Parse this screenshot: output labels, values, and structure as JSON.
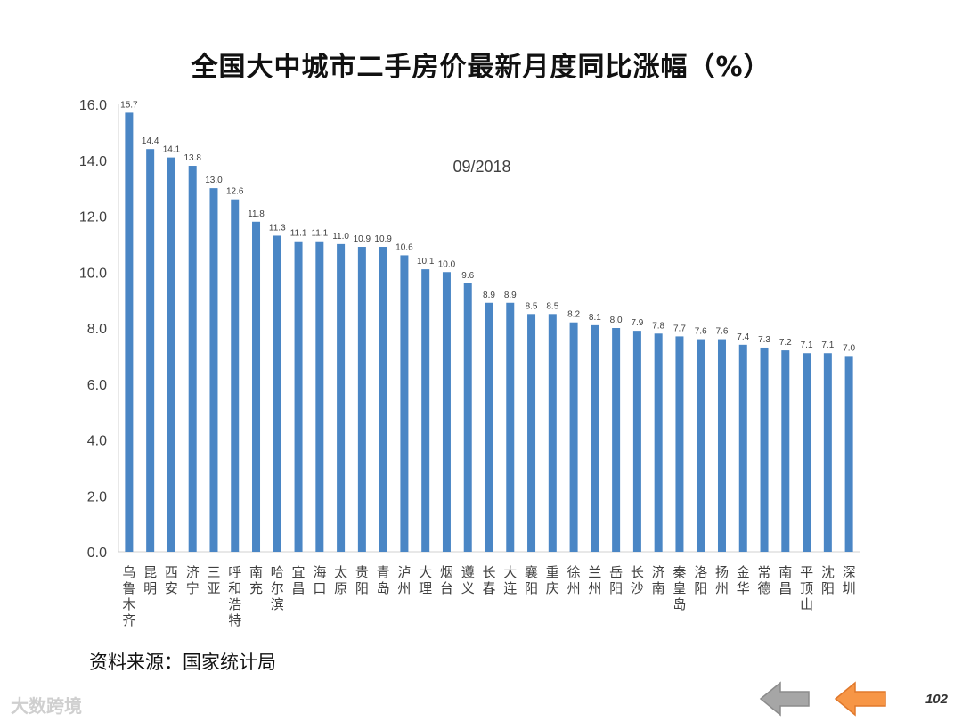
{
  "colors": {
    "bar": "#4a86c5",
    "axis": "#d0d0d0",
    "text": "#404040",
    "nav_back": "#a6a6a6",
    "nav_forward": "#f79646"
  },
  "chart_data": {
    "type": "bar",
    "title": "全国大中城市二手房价最新月度同比涨幅（%）",
    "annotation": "09/2018",
    "ylim": [
      0,
      16
    ],
    "yticks": [
      "0.0",
      "2.0",
      "4.0",
      "6.0",
      "8.0",
      "10.0",
      "12.0",
      "14.0",
      "16.0"
    ],
    "grid": false,
    "categories": [
      "乌鲁木齐",
      "昆明",
      "西安",
      "济宁",
      "三亚",
      "呼和浩特",
      "南充",
      "哈尔滨",
      "宜昌",
      "海口",
      "太原",
      "贵阳",
      "青岛",
      "泸州",
      "大理",
      "烟台",
      "遵义",
      "长春",
      "大连",
      "襄阳",
      "重庆",
      "徐州",
      "兰州",
      "岳阳",
      "长沙",
      "济南",
      "秦皇岛",
      "洛阳",
      "扬州",
      "金华",
      "常德",
      "南昌",
      "平顶山",
      "沈阳",
      "深圳"
    ],
    "values": [
      15.7,
      14.4,
      14.1,
      13.8,
      13.0,
      12.6,
      11.8,
      11.3,
      11.1,
      11.1,
      11.0,
      10.9,
      10.9,
      10.6,
      10.1,
      10.0,
      9.6,
      8.9,
      8.9,
      8.5,
      8.5,
      8.2,
      8.1,
      8.0,
      7.9,
      7.8,
      7.7,
      7.6,
      7.6,
      7.4,
      7.3,
      7.2,
      7.1,
      7.1,
      7.0
    ],
    "data_labels": [
      "15.7",
      "14.4",
      "14.1",
      "13.8",
      "13.0",
      "12.6",
      "11.8",
      "11.3",
      "11.1",
      "11.1",
      "11.0",
      "10.9",
      "10.9",
      "10.6",
      "10.1",
      "10.0",
      "9.6",
      "8.9",
      "8.9",
      "8.5",
      "8.5",
      "8.2",
      "8.1",
      "8.0",
      "7.9",
      "7.8",
      "7.7",
      "7.6",
      "7.6",
      "7.4",
      "7.3",
      "7.2",
      "7.1",
      "7.1",
      "7.0"
    ]
  },
  "footer": {
    "source": "资料来源：国家统计局",
    "watermark": "大数跨境",
    "page_number": "102"
  },
  "nav": {
    "back_icon": "arrow-left-icon",
    "forward_icon": "arrow-left-icon"
  }
}
